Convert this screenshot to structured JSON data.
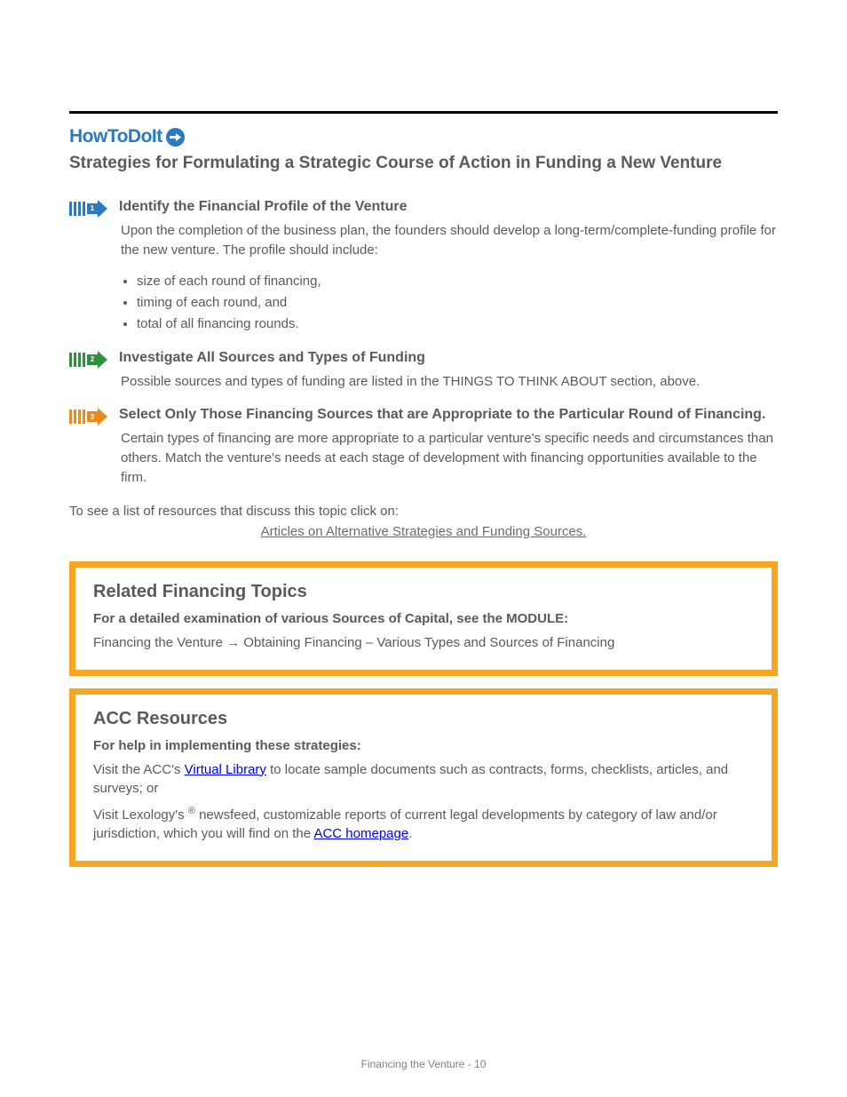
{
  "header": {
    "how_to": "HowToDoIt",
    "subtitle": "Strategies for Formulating a Strategic Course of Action in Funding a New Venture"
  },
  "steps": [
    {
      "color": "blue",
      "num": "1",
      "title": "Identify the Financial Profile of the Venture",
      "intro": "Upon the completion of the business plan, the founders should develop a long-term/complete-funding profile for the new venture.  The profile should include:",
      "bullets": [
        "size of each round of financing,",
        "timing of each round, and",
        "total of all financing rounds."
      ]
    },
    {
      "color": "green",
      "num": "2",
      "title": "Investigate All Sources and Types of Funding",
      "intro": "Possible sources and types of funding are listed in the THINGS TO THINK ABOUT section, above.",
      "bullets": []
    },
    {
      "color": "orange",
      "num": "3",
      "title": "Select Only Those Financing Sources that are Appropriate to the Particular Round of Financing.",
      "intro": "Certain types of financing are more appropriate to a particular venture's specific needs and circumstances than others.  Match the venture's needs at each stage of development with financing opportunities available to the firm.",
      "bullets": []
    }
  ],
  "link_line": "To see a list of resources that discuss this topic click on:",
  "link_text": "Articles on Alternative Strategies and Funding Sources.",
  "link_href": "#",
  "related_box": {
    "title": "Related Financing Topics",
    "sub": "For a detailed examination of various Sources of Capital, see the MODULE:",
    "text_prefix": "Financing the Venture ",
    "arrow": "→",
    "text_suffix": " Obtaining Financing – Various Types and Sources of Financing"
  },
  "acc_box": {
    "title": "ACC Resources",
    "sub": "For help in implementing these strategies:",
    "line1_pre": "Visit the ACC's ",
    "line1_link": "Virtual Library",
    "line1_post": " to locate sample documents such as contracts, forms, checklists, articles, and surveys; or",
    "line2": "Visit Lexology's ",
    "line2_reg": "®",
    "line2_post": " newsfeed, customizable reports of current legal developments by category of law and/or jurisdiction, which you will find on the ",
    "line2_link": "ACC homepage",
    "line2_end": "."
  },
  "footer": {
    "page": "Financing the Venture - 10"
  },
  "colors": {
    "blue": "#2a7ac2",
    "green": "#2e8f3e",
    "orange": "#e78a1f",
    "border_box": "#f5a623",
    "text": "#5a5a5a"
  }
}
